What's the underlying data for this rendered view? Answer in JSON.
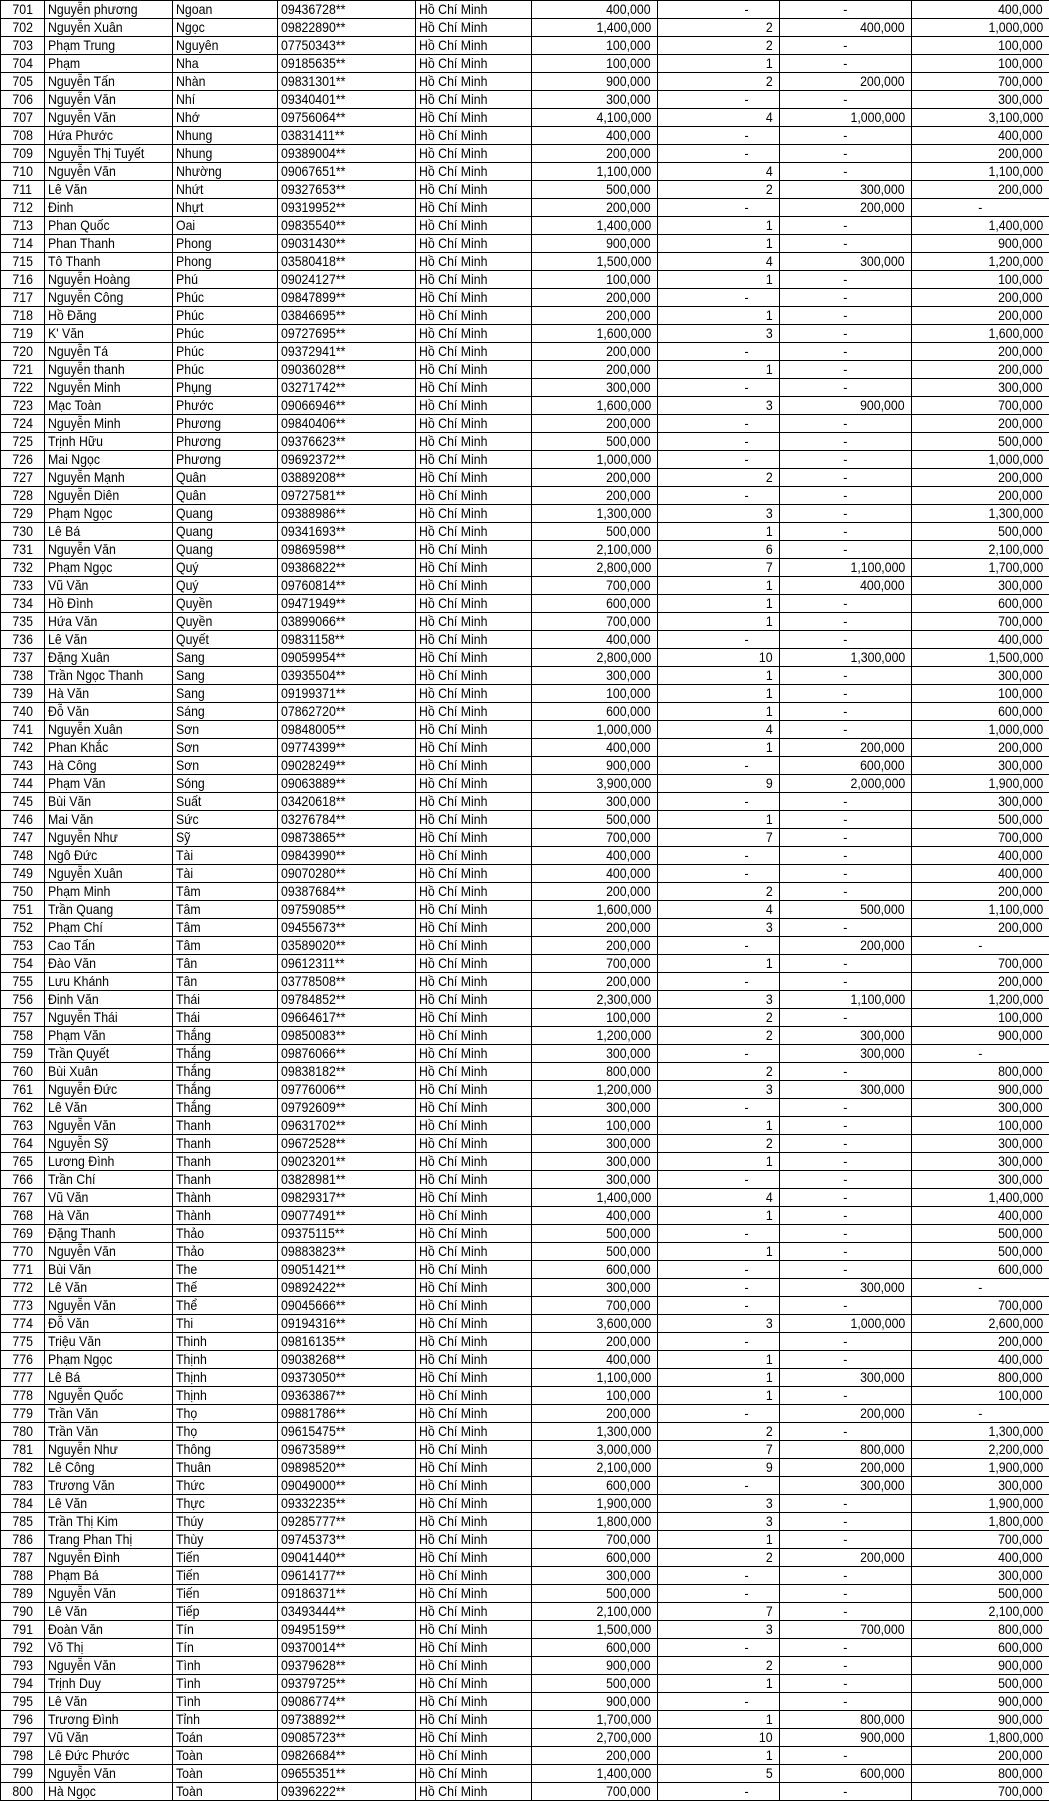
{
  "rows": [
    [
      "701",
      "Nguyễn phương",
      "Ngoan",
      "09436728**",
      "Hồ Chí Minh",
      "400,000",
      "-",
      "-",
      "400,000"
    ],
    [
      "702",
      "Nguyễn Xuân",
      "Ngọc",
      "09822890**",
      "Hồ Chí Minh",
      "1,400,000",
      "2",
      "400,000",
      "1,000,000"
    ],
    [
      "703",
      "Phạm Trung",
      "Nguyên",
      "07750343**",
      "Hồ Chí Minh",
      "100,000",
      "2",
      "-",
      "100,000"
    ],
    [
      "704",
      "Phạm",
      "Nha",
      "09185635**",
      "Hồ Chí Minh",
      "100,000",
      "1",
      "-",
      "100,000"
    ],
    [
      "705",
      "Nguyễn Tấn",
      "Nhàn",
      "09831301**",
      "Hồ Chí Minh",
      "900,000",
      "2",
      "200,000",
      "700,000"
    ],
    [
      "706",
      "Nguyễn Văn",
      "Nhí",
      "09340401**",
      "Hồ Chí Minh",
      "300,000",
      "-",
      "-",
      "300,000"
    ],
    [
      "707",
      "Nguyễn Văn",
      "Nhớ",
      "09756064**",
      "Hồ Chí Minh",
      "4,100,000",
      "4",
      "1,000,000",
      "3,100,000"
    ],
    [
      "708",
      "Hứa Phước",
      "Nhung",
      "03831411**",
      "Hồ Chí Minh",
      "400,000",
      "-",
      "-",
      "400,000"
    ],
    [
      "709",
      "Nguyễn Thị  Tuyết",
      "Nhung",
      "09389004**",
      "Hồ Chí Minh",
      "200,000",
      "-",
      "-",
      "200,000"
    ],
    [
      "710",
      "Nguyễn Văn",
      "Nhường",
      "09067651**",
      "Hồ Chí Minh",
      "1,100,000",
      "4",
      "-",
      "1,100,000"
    ],
    [
      "711",
      "Lê Văn",
      "Nhứt",
      "09327653**",
      "Hồ Chí Minh",
      "500,000",
      "2",
      "300,000",
      "200,000"
    ],
    [
      "712",
      "Đinh",
      "Nhựt",
      "09319952**",
      "Hồ Chí Minh",
      "200,000",
      "-",
      "200,000",
      "-"
    ],
    [
      "713",
      "Phan Quốc",
      "Oai",
      "09835540**",
      "Hồ Chí Minh",
      "1,400,000",
      "1",
      "-",
      "1,400,000"
    ],
    [
      "714",
      "Phan Thanh",
      "Phong",
      "09031430**",
      "Hồ Chí Minh",
      "900,000",
      "1",
      "-",
      "900,000"
    ],
    [
      "715",
      "Tô Thanh",
      "Phong",
      "03580418**",
      "Hồ Chí Minh",
      "1,500,000",
      "4",
      "300,000",
      "1,200,000"
    ],
    [
      "716",
      "Nguyễn Hoàng",
      "Phú",
      "09024127**",
      "Hồ Chí Minh",
      "100,000",
      "1",
      "-",
      "100,000"
    ],
    [
      "717",
      "Nguyễn Công",
      "Phúc",
      "09847899**",
      "Hồ Chí Minh",
      "200,000",
      "-",
      "-",
      "200,000"
    ],
    [
      "718",
      "Hồ Đăng",
      "Phúc",
      "03846695**",
      "Hồ Chí Minh",
      "200,000",
      "1",
      "-",
      "200,000"
    ],
    [
      "719",
      "K' Văn",
      "Phúc",
      "09727695**",
      "Hồ Chí Minh",
      "1,600,000",
      "3",
      "-",
      "1,600,000"
    ],
    [
      "720",
      "Nguyễn Tá",
      "Phúc",
      "09372941**",
      "Hồ Chí Minh",
      "200,000",
      "-",
      "-",
      "200,000"
    ],
    [
      "721",
      "Nguyễn thanh",
      "Phúc",
      "09036028**",
      "Hồ Chí Minh",
      "200,000",
      "1",
      "-",
      "200,000"
    ],
    [
      "722",
      "Nguyễn Minh",
      "Phụng",
      "03271742**",
      "Hồ Chí Minh",
      "300,000",
      "-",
      "-",
      "300,000"
    ],
    [
      "723",
      "Mạc Toàn",
      "Phước",
      "09066946**",
      "Hồ Chí Minh",
      "1,600,000",
      "3",
      "900,000",
      "700,000"
    ],
    [
      "724",
      "Nguyễn Minh",
      "Phương",
      "09840406**",
      "Hồ Chí Minh",
      "200,000",
      "-",
      "-",
      "200,000"
    ],
    [
      "725",
      "Trịnh Hữu",
      "Phương",
      "09376623**",
      "Hồ Chí Minh",
      "500,000",
      "-",
      "-",
      "500,000"
    ],
    [
      "726",
      "Mai Ngọc",
      "Phương",
      "09692372**",
      "Hồ Chí Minh",
      "1,000,000",
      "-",
      "-",
      "1,000,000"
    ],
    [
      "727",
      "Nguyễn Mạnh",
      "Quân",
      "03889208**",
      "Hồ Chí Minh",
      "200,000",
      "2",
      "-",
      "200,000"
    ],
    [
      "728",
      "Nguyễn Diên",
      "Quân",
      "09727581**",
      "Hồ Chí Minh",
      "200,000",
      "-",
      "-",
      "200,000"
    ],
    [
      "729",
      "Phạm Ngọc",
      "Quang",
      "09388986**",
      "Hồ Chí Minh",
      "1,300,000",
      "3",
      "-",
      "1,300,000"
    ],
    [
      "730",
      "Lê Bá",
      "Quang",
      "09341693**",
      "Hồ Chí Minh",
      "500,000",
      "1",
      "-",
      "500,000"
    ],
    [
      "731",
      "Nguyễn Văn",
      "Quang",
      "09869598**",
      "Hồ Chí Minh",
      "2,100,000",
      "6",
      "-",
      "2,100,000"
    ],
    [
      "732",
      "Phạm Ngọc",
      "Quý",
      "09386822**",
      "Hồ Chí Minh",
      "2,800,000",
      "7",
      "1,100,000",
      "1,700,000"
    ],
    [
      "733",
      "Vũ Văn",
      "Quý",
      "09760814**",
      "Hồ Chí Minh",
      "700,000",
      "1",
      "400,000",
      "300,000"
    ],
    [
      "734",
      "Hồ Đình",
      "Quyền",
      "09471949**",
      "Hồ Chí Minh",
      "600,000",
      "1",
      "-",
      "600,000"
    ],
    [
      "735",
      "Hứa Văn",
      "Quyền",
      "03899066**",
      "Hồ Chí Minh",
      "700,000",
      "1",
      "-",
      "700,000"
    ],
    [
      "736",
      "Lê Văn",
      "Quyết",
      "09831158**",
      "Hồ Chí Minh",
      "400,000",
      "-",
      "-",
      "400,000"
    ],
    [
      "737",
      "Đặng Xuân",
      "Sang",
      "09059954**",
      "Hồ Chí Minh",
      "2,800,000",
      "10",
      "1,300,000",
      "1,500,000"
    ],
    [
      "738",
      "Trần Ngọc Thanh",
      "Sang",
      "03935504**",
      "Hồ Chí Minh",
      "300,000",
      "1",
      "-",
      "300,000"
    ],
    [
      "739",
      "Hà Văn",
      "Sang",
      "09199371**",
      "Hồ Chí Minh",
      "100,000",
      "1",
      "-",
      "100,000"
    ],
    [
      "740",
      "Đỗ Văn",
      "Sáng",
      "07862720**",
      "Hồ Chí Minh",
      "600,000",
      "1",
      "-",
      "600,000"
    ],
    [
      "741",
      "Nguyễn Xuân",
      "Sơn",
      "09848005**",
      "Hồ Chí Minh",
      "1,000,000",
      "4",
      "-",
      "1,000,000"
    ],
    [
      "742",
      "Phan Khắc",
      "Sơn",
      "09774399**",
      "Hồ Chí Minh",
      "400,000",
      "1",
      "200,000",
      "200,000"
    ],
    [
      "743",
      "Hà Công",
      "Sơn",
      "09028249**",
      "Hồ Chí Minh",
      "900,000",
      "-",
      "600,000",
      "300,000"
    ],
    [
      "744",
      "Phạm Văn",
      "Sóng",
      "09063889**",
      "Hồ Chí Minh",
      "3,900,000",
      "9",
      "2,000,000",
      "1,900,000"
    ],
    [
      "745",
      "Bùi Văn",
      "Suất",
      "03420618**",
      "Hồ Chí Minh",
      "300,000",
      "-",
      "-",
      "300,000"
    ],
    [
      "746",
      "Mai Văn",
      "Sức",
      "03276784**",
      "Hồ Chí Minh",
      "500,000",
      "1",
      "-",
      "500,000"
    ],
    [
      "747",
      "Nguyễn Như",
      "Sỹ",
      "09873865**",
      "Hồ Chí Minh",
      "700,000",
      "7",
      "-",
      "700,000"
    ],
    [
      "748",
      "Ngô Đức",
      "Tài",
      "09843990**",
      "Hồ Chí Minh",
      "400,000",
      "-",
      "-",
      "400,000"
    ],
    [
      "749",
      "Nguyễn  Xuân",
      "Tài",
      "09070280**",
      "Hồ Chí Minh",
      "400,000",
      "-",
      "-",
      "400,000"
    ],
    [
      "750",
      "Phạm Minh",
      "Tâm",
      "09387684**",
      "Hồ Chí Minh",
      "200,000",
      "2",
      "-",
      "200,000"
    ],
    [
      "751",
      "Trần Quang",
      "Tâm",
      "09759085**",
      "Hồ Chí Minh",
      "1,600,000",
      "4",
      "500,000",
      "1,100,000"
    ],
    [
      "752",
      "Phạm Chí",
      "Tâm",
      "09455673**",
      "Hồ Chí Minh",
      "200,000",
      "3",
      "-",
      "200,000"
    ],
    [
      "753",
      "Cao Tấn",
      "Tâm",
      "03589020**",
      "Hồ Chí Minh",
      "200,000",
      "-",
      "200,000",
      "-"
    ],
    [
      "754",
      "Đào Văn",
      "Tân",
      "09612311**",
      "Hồ Chí Minh",
      "700,000",
      "1",
      "-",
      "700,000"
    ],
    [
      "755",
      "Lưu Khánh",
      "Tân",
      "03778508**",
      "Hồ Chí Minh",
      "200,000",
      "-",
      "-",
      "200,000"
    ],
    [
      "756",
      "Đinh Văn",
      "Thái",
      "09784852**",
      "Hồ Chí Minh",
      "2,300,000",
      "3",
      "1,100,000",
      "1,200,000"
    ],
    [
      "757",
      "Nguyễn Thái",
      "Thái",
      "09664617**",
      "Hồ Chí Minh",
      "100,000",
      "2",
      "-",
      "100,000"
    ],
    [
      "758",
      "Phạm Văn",
      "Thắng",
      "09850083**",
      "Hồ Chí Minh",
      "1,200,000",
      "2",
      "300,000",
      "900,000"
    ],
    [
      "759",
      "Trần Quyết",
      "Thắng",
      "09876066**",
      "Hồ Chí Minh",
      "300,000",
      "-",
      "300,000",
      "-"
    ],
    [
      "760",
      "Bùi Xuân",
      "Thắng",
      "09838182**",
      "Hồ Chí Minh",
      "800,000",
      "2",
      "-",
      "800,000"
    ],
    [
      "761",
      "Nguyễn Đức",
      "Thắng",
      "09776006**",
      "Hồ Chí Minh",
      "1,200,000",
      "3",
      "300,000",
      "900,000"
    ],
    [
      "762",
      "Lê Văn",
      "Thắng",
      "09792609**",
      "Hồ Chí Minh",
      "300,000",
      "-",
      "-",
      "300,000"
    ],
    [
      "763",
      "Nguyễn Văn",
      "Thanh",
      "09631702**",
      "Hồ Chí Minh",
      "100,000",
      "1",
      "-",
      "100,000"
    ],
    [
      "764",
      "Nguyễn Sỹ",
      "Thanh",
      "09672528**",
      "Hồ Chí Minh",
      "300,000",
      "2",
      "-",
      "300,000"
    ],
    [
      "765",
      "Lương  Đình",
      "Thanh",
      "09023201**",
      "Hồ Chí Minh",
      "300,000",
      "1",
      "-",
      "300,000"
    ],
    [
      "766",
      "Trần Chí",
      "Thanh",
      "03828981**",
      "Hồ Chí Minh",
      "300,000",
      "-",
      "-",
      "300,000"
    ],
    [
      "767",
      "Vũ Văn",
      "Thành",
      "09829317**",
      "Hồ Chí Minh",
      "1,400,000",
      "4",
      "-",
      "1,400,000"
    ],
    [
      "768",
      "Hà Văn",
      "Thành",
      "09077491**",
      "Hồ Chí Minh",
      "400,000",
      "1",
      "-",
      "400,000"
    ],
    [
      "769",
      "Đặng Thanh",
      "Thảo",
      "09375115**",
      "Hồ Chí Minh",
      "500,000",
      "-",
      "-",
      "500,000"
    ],
    [
      "770",
      "Nguyễn Văn",
      "Thảo",
      "09883823**",
      "Hồ Chí Minh",
      "500,000",
      "1",
      "-",
      "500,000"
    ],
    [
      "771",
      "Bùi Văn",
      "The",
      "09051421**",
      "Hồ Chí Minh",
      "600,000",
      "-",
      "-",
      "600,000"
    ],
    [
      "772",
      "Lê Văn",
      "Thế",
      "09892422**",
      "Hồ Chí Minh",
      "300,000",
      "-",
      "300,000",
      "-"
    ],
    [
      "773",
      "Nguyễn Văn",
      "Thể",
      "09045666**",
      "Hồ Chí Minh",
      "700,000",
      "-",
      "-",
      "700,000"
    ],
    [
      "774",
      "Đỗ Văn",
      "Thi",
      "09194316**",
      "Hồ Chí Minh",
      "3,600,000",
      "3",
      "1,000,000",
      "2,600,000"
    ],
    [
      "775",
      "Triệu Văn",
      "Thinh",
      "09816135**",
      "Hồ Chí Minh",
      "200,000",
      "-",
      "-",
      "200,000"
    ],
    [
      "776",
      "Phạm Ngọc",
      "Thịnh",
      "09038268**",
      "Hồ Chí Minh",
      "400,000",
      "1",
      "-",
      "400,000"
    ],
    [
      "777",
      "Lê Bá",
      "Thịnh",
      "09373050**",
      "Hồ Chí Minh",
      "1,100,000",
      "1",
      "300,000",
      "800,000"
    ],
    [
      "778",
      "Nguyễn Quốc",
      "Thịnh",
      "09363867**",
      "Hồ Chí Minh",
      "100,000",
      "1",
      "-",
      "100,000"
    ],
    [
      "779",
      "Trần Văn",
      "Thọ",
      "09881786**",
      "Hồ Chí Minh",
      "200,000",
      "-",
      "200,000",
      "-"
    ],
    [
      "780",
      "Trần Văn",
      "Thọ",
      "09615475**",
      "Hồ Chí Minh",
      "1,300,000",
      "2",
      "-",
      "1,300,000"
    ],
    [
      "781",
      "Nguyễn Như",
      "Thông",
      "09673589**",
      "Hồ Chí Minh",
      "3,000,000",
      "7",
      "800,000",
      "2,200,000"
    ],
    [
      "782",
      "Lê Công",
      "Thuân",
      "09898520**",
      "Hồ Chí Minh",
      "2,100,000",
      "9",
      "200,000",
      "1,900,000"
    ],
    [
      "783",
      "Trương Văn",
      "Thức",
      "09049000**",
      "Hồ Chí Minh",
      "600,000",
      "-",
      "300,000",
      "300,000"
    ],
    [
      "784",
      "Lê Văn",
      "Thực",
      "09332235**",
      "Hồ Chí Minh",
      "1,900,000",
      "3",
      "-",
      "1,900,000"
    ],
    [
      "785",
      "Trần Thị Kim",
      "Thúy",
      "09285777**",
      "Hồ Chí Minh",
      "1,800,000",
      "3",
      "-",
      "1,800,000"
    ],
    [
      "786",
      "Trang Phan Thị",
      "Thùy",
      "09745373**",
      "Hồ Chí Minh",
      "700,000",
      "1",
      "-",
      "700,000"
    ],
    [
      "787",
      "Nguyễn Đình",
      "Tiến",
      "09041440**",
      "Hồ Chí Minh",
      "600,000",
      "2",
      "200,000",
      "400,000"
    ],
    [
      "788",
      "Phạm Bá",
      "Tiến",
      "09614177**",
      "Hồ Chí Minh",
      "300,000",
      "-",
      "-",
      "300,000"
    ],
    [
      "789",
      "Nguyễn Văn",
      "Tiến",
      "09186371**",
      "Hồ Chí Minh",
      "500,000",
      "-",
      "-",
      "500,000"
    ],
    [
      "790",
      "Lê Văn",
      "Tiếp",
      "03493444**",
      "Hồ Chí Minh",
      "2,100,000",
      "7",
      "-",
      "2,100,000"
    ],
    [
      "791",
      "Đoàn Văn",
      "Tín",
      "09495159**",
      "Hồ Chí Minh",
      "1,500,000",
      "3",
      "700,000",
      "800,000"
    ],
    [
      "792",
      "Võ Thị",
      "Tín",
      "09370014**",
      "Hồ Chí Minh",
      "600,000",
      "-",
      "-",
      "600,000"
    ],
    [
      "793",
      "Nguyễn Văn",
      "Tình",
      "09379628**",
      "Hồ Chí Minh",
      "900,000",
      "2",
      "-",
      "900,000"
    ],
    [
      "794",
      "Trịnh Duy",
      "Tình",
      "09379725**",
      "Hồ Chí Minh",
      "500,000",
      "1",
      "-",
      "500,000"
    ],
    [
      "795",
      "Lê Văn",
      "Tình",
      "09086774**",
      "Hồ Chí Minh",
      "900,000",
      "-",
      "-",
      "900,000"
    ],
    [
      "796",
      "Trương Đình",
      "Tỉnh",
      "09738892**",
      "Hồ Chí Minh",
      "1,700,000",
      "1",
      "800,000",
      "900,000"
    ],
    [
      "797",
      "Vũ Văn",
      "Toán",
      "09085723**",
      "Hồ Chí Minh",
      "2,700,000",
      "10",
      "900,000",
      "1,800,000"
    ],
    [
      "798",
      "Lê Đức Phước",
      "Toàn",
      "09826684**",
      "Hồ Chí Minh",
      "200,000",
      "1",
      "-",
      "200,000"
    ],
    [
      "799",
      "Nguyễn Văn",
      "Toàn",
      "09655351**",
      "Hồ Chí Minh",
      "1,400,000",
      "5",
      "600,000",
      "800,000"
    ],
    [
      "800",
      "Hà Ngọc",
      "Toàn",
      "09396222**",
      "Hồ Chí Minh",
      "700,000",
      "-",
      "-",
      "700,000"
    ]
  ]
}
